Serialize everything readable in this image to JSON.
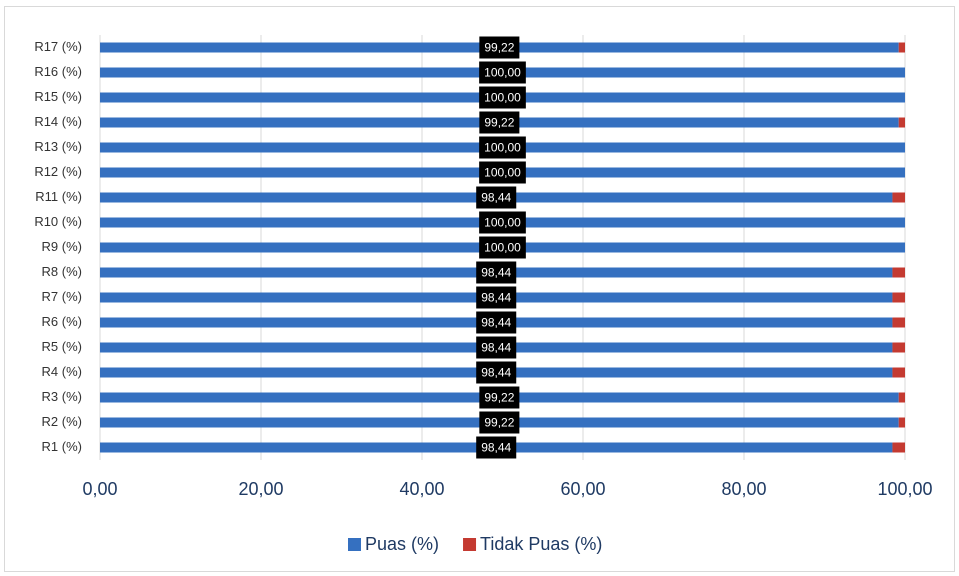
{
  "chart_data": {
    "type": "stacked-barh",
    "categories": [
      "R1 (%)",
      "R2 (%)",
      "R3 (%)",
      "R4 (%)",
      "R5 (%)",
      "R6 (%)",
      "R7 (%)",
      "R8 (%)",
      "R9 (%)",
      "R10 (%)",
      "R11 (%)",
      "R12 (%)",
      "R13 (%)",
      "R14 (%)",
      "R15 (%)",
      "R16 (%)",
      "R17 (%)"
    ],
    "series": [
      {
        "name": "Puas (%)",
        "color": "#3570c0",
        "values": [
          98.44,
          99.22,
          99.22,
          98.44,
          98.44,
          98.44,
          98.44,
          98.44,
          100,
          100,
          98.44,
          100,
          100,
          99.22,
          100,
          100,
          99.22
        ],
        "value_labels": [
          "98,44",
          "99,22",
          "99,22",
          "98,44",
          "98,44",
          "98,44",
          "98,44",
          "98,44",
          "100,00",
          "100,00",
          "98,44",
          "100,00",
          "100,00",
          "99,22",
          "100,00",
          "100,00",
          "99,22"
        ]
      },
      {
        "name": "Tidak Puas (%)",
        "color": "#c43a31",
        "values": [
          1.56,
          0.78,
          0.78,
          1.56,
          1.56,
          1.56,
          1.56,
          1.56,
          0,
          0,
          1.56,
          0,
          0,
          0.78,
          0,
          0,
          0.78
        ]
      }
    ],
    "xlim": [
      0,
      100
    ],
    "xticks": [
      {
        "value": 0,
        "label": "0,00"
      },
      {
        "value": 20,
        "label": "20,00"
      },
      {
        "value": 40,
        "label": "40,00"
      },
      {
        "value": 60,
        "label": "60,00"
      },
      {
        "value": 80,
        "label": "80,00"
      },
      {
        "value": 100,
        "label": "100,00"
      }
    ],
    "grid": true,
    "legend": "bottom"
  }
}
